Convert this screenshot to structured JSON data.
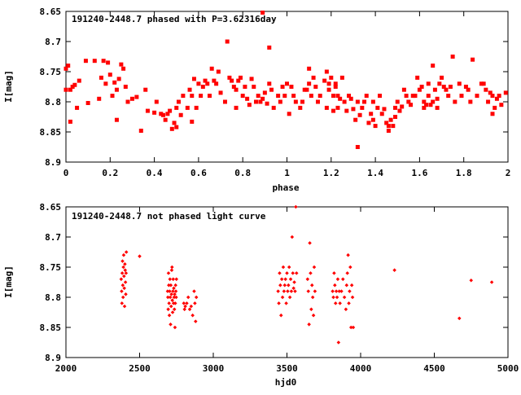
{
  "chart_data": [
    {
      "type": "scatter",
      "title": "191240-2448.7 phased with P=3.62316day",
      "xlabel": "phase",
      "ylabel": "I[mag]",
      "xlim": [
        0,
        2
      ],
      "ylim": [
        8.65,
        8.9
      ],
      "y_inverted": true,
      "x_ticks": [
        "0",
        "0.2",
        "0.4",
        "0.6",
        "0.8",
        "1",
        "1.2",
        "1.4",
        "1.6",
        "1.8",
        "2"
      ],
      "y_ticks": [
        "8.65",
        "8.7",
        "8.75",
        "8.8",
        "8.85",
        "8.9"
      ],
      "marker_color": "#ff0000",
      "grid": false,
      "points": [
        [
          0.0,
          8.745
        ],
        [
          0.0,
          8.78
        ],
        [
          0.01,
          8.74
        ],
        [
          0.02,
          8.78
        ],
        [
          0.02,
          8.833
        ],
        [
          0.03,
          8.775
        ],
        [
          0.04,
          8.772
        ],
        [
          0.05,
          8.81
        ],
        [
          0.06,
          8.765
        ],
        [
          0.09,
          8.732
        ],
        [
          0.1,
          8.802
        ],
        [
          0.13,
          8.732
        ],
        [
          0.15,
          8.795
        ],
        [
          0.16,
          8.76
        ],
        [
          0.17,
          8.732
        ],
        [
          0.18,
          8.77
        ],
        [
          0.19,
          8.735
        ],
        [
          0.2,
          8.755
        ],
        [
          0.21,
          8.79
        ],
        [
          0.22,
          8.768
        ],
        [
          0.23,
          8.78
        ],
        [
          0.23,
          8.83
        ],
        [
          0.24,
          8.762
        ],
        [
          0.25,
          8.738
        ],
        [
          0.26,
          8.745
        ],
        [
          0.27,
          8.775
        ],
        [
          0.28,
          8.8
        ],
        [
          0.3,
          8.795
        ],
        [
          0.32,
          8.792
        ],
        [
          0.34,
          8.848
        ],
        [
          0.36,
          8.78
        ],
        [
          0.37,
          8.815
        ],
        [
          0.4,
          8.818
        ],
        [
          0.41,
          8.8
        ],
        [
          0.43,
          8.82
        ],
        [
          0.44,
          8.822
        ],
        [
          0.45,
          8.83
        ],
        [
          0.46,
          8.82
        ],
        [
          0.47,
          8.815
        ],
        [
          0.48,
          8.845
        ],
        [
          0.49,
          8.835
        ],
        [
          0.5,
          8.81
        ],
        [
          0.5,
          8.842
        ],
        [
          0.51,
          8.8
        ],
        [
          0.52,
          8.822
        ],
        [
          0.53,
          8.79
        ],
        [
          0.55,
          8.81
        ],
        [
          0.56,
          8.78
        ],
        [
          0.57,
          8.79
        ],
        [
          0.57,
          8.833
        ],
        [
          0.58,
          8.762
        ],
        [
          0.59,
          8.81
        ],
        [
          0.6,
          8.77
        ],
        [
          0.61,
          8.79
        ],
        [
          0.62,
          8.775
        ],
        [
          0.63,
          8.765
        ],
        [
          0.64,
          8.77
        ],
        [
          0.65,
          8.79
        ],
        [
          0.66,
          8.745
        ],
        [
          0.67,
          8.765
        ],
        [
          0.68,
          8.77
        ],
        [
          0.69,
          8.75
        ],
        [
          0.7,
          8.785
        ],
        [
          0.72,
          8.8
        ],
        [
          0.73,
          8.7
        ],
        [
          0.74,
          8.76
        ],
        [
          0.75,
          8.765
        ],
        [
          0.76,
          8.775
        ],
        [
          0.77,
          8.78
        ],
        [
          0.77,
          8.81
        ],
        [
          0.78,
          8.765
        ],
        [
          0.79,
          8.76
        ],
        [
          0.8,
          8.79
        ],
        [
          0.81,
          8.775
        ],
        [
          0.82,
          8.795
        ],
        [
          0.83,
          8.805
        ],
        [
          0.84,
          8.762
        ],
        [
          0.85,
          8.775
        ],
        [
          0.86,
          8.8
        ],
        [
          0.87,
          8.79
        ],
        [
          0.88,
          8.8
        ],
        [
          0.89,
          8.652
        ],
        [
          0.89,
          8.795
        ],
        [
          0.9,
          8.785
        ],
        [
          0.91,
          8.803
        ],
        [
          0.92,
          8.71
        ],
        [
          0.92,
          8.77
        ],
        [
          0.93,
          8.78
        ],
        [
          0.94,
          8.81
        ],
        [
          0.96,
          8.79
        ],
        [
          0.97,
          8.8
        ],
        [
          0.98,
          8.775
        ],
        [
          0.99,
          8.79
        ],
        [
          1.0,
          8.77
        ],
        [
          1.01,
          8.82
        ],
        [
          1.02,
          8.775
        ],
        [
          1.03,
          8.79
        ],
        [
          1.04,
          8.8
        ],
        [
          1.06,
          8.81
        ],
        [
          1.07,
          8.8
        ],
        [
          1.08,
          8.78
        ],
        [
          1.09,
          8.78
        ],
        [
          1.1,
          8.745
        ],
        [
          1.1,
          8.77
        ],
        [
          1.11,
          8.79
        ],
        [
          1.12,
          8.76
        ],
        [
          1.13,
          8.775
        ],
        [
          1.14,
          8.8
        ],
        [
          1.15,
          8.79
        ],
        [
          1.17,
          8.765
        ],
        [
          1.18,
          8.81
        ],
        [
          1.18,
          8.75
        ],
        [
          1.19,
          8.78
        ],
        [
          1.19,
          8.77
        ],
        [
          1.2,
          8.76
        ],
        [
          1.21,
          8.79
        ],
        [
          1.21,
          8.815
        ],
        [
          1.22,
          8.77
        ],
        [
          1.22,
          8.775
        ],
        [
          1.23,
          8.79
        ],
        [
          1.23,
          8.81
        ],
        [
          1.24,
          8.795
        ],
        [
          1.25,
          8.76
        ],
        [
          1.26,
          8.8
        ],
        [
          1.27,
          8.815
        ],
        [
          1.28,
          8.79
        ],
        [
          1.29,
          8.795
        ],
        [
          1.3,
          8.812
        ],
        [
          1.31,
          8.83
        ],
        [
          1.32,
          8.8
        ],
        [
          1.32,
          8.875
        ],
        [
          1.33,
          8.822
        ],
        [
          1.34,
          8.81
        ],
        [
          1.35,
          8.8
        ],
        [
          1.36,
          8.79
        ],
        [
          1.37,
          8.835
        ],
        [
          1.38,
          8.82
        ],
        [
          1.39,
          8.83
        ],
        [
          1.39,
          8.8
        ],
        [
          1.4,
          8.84
        ],
        [
          1.41,
          8.81
        ],
        [
          1.42,
          8.79
        ],
        [
          1.43,
          8.82
        ],
        [
          1.44,
          8.812
        ],
        [
          1.45,
          8.835
        ],
        [
          1.46,
          8.84
        ],
        [
          1.46,
          8.848
        ],
        [
          1.47,
          8.83
        ],
        [
          1.48,
          8.84
        ],
        [
          1.49,
          8.81
        ],
        [
          1.49,
          8.825
        ],
        [
          1.5,
          8.8
        ],
        [
          1.51,
          8.815
        ],
        [
          1.52,
          8.808
        ],
        [
          1.53,
          8.78
        ],
        [
          1.54,
          8.79
        ],
        [
          1.55,
          8.8
        ],
        [
          1.56,
          8.805
        ],
        [
          1.57,
          8.79
        ],
        [
          1.58,
          8.79
        ],
        [
          1.59,
          8.76
        ],
        [
          1.6,
          8.78
        ],
        [
          1.61,
          8.775
        ],
        [
          1.62,
          8.8
        ],
        [
          1.62,
          8.81
        ],
        [
          1.63,
          8.805
        ],
        [
          1.64,
          8.79
        ],
        [
          1.64,
          8.77
        ],
        [
          1.65,
          8.805
        ],
        [
          1.66,
          8.74
        ],
        [
          1.66,
          8.8
        ],
        [
          1.67,
          8.78
        ],
        [
          1.68,
          8.795
        ],
        [
          1.68,
          8.81
        ],
        [
          1.69,
          8.77
        ],
        [
          1.7,
          8.76
        ],
        [
          1.71,
          8.775
        ],
        [
          1.72,
          8.78
        ],
        [
          1.73,
          8.79
        ],
        [
          1.74,
          8.775
        ],
        [
          1.75,
          8.725
        ],
        [
          1.76,
          8.8
        ],
        [
          1.78,
          8.77
        ],
        [
          1.79,
          8.79
        ],
        [
          1.81,
          8.775
        ],
        [
          1.82,
          8.78
        ],
        [
          1.83,
          8.8
        ],
        [
          1.84,
          8.73
        ],
        [
          1.86,
          8.79
        ],
        [
          1.88,
          8.77
        ],
        [
          1.89,
          8.77
        ],
        [
          1.9,
          8.78
        ],
        [
          1.91,
          8.8
        ],
        [
          1.92,
          8.785
        ],
        [
          1.93,
          8.79
        ],
        [
          1.93,
          8.82
        ],
        [
          1.94,
          8.81
        ],
        [
          1.95,
          8.795
        ],
        [
          1.96,
          8.79
        ],
        [
          1.97,
          8.805
        ],
        [
          1.99,
          8.785
        ]
      ]
    },
    {
      "type": "scatter",
      "title": "191240-2448.7 not phased light curve",
      "xlabel": "hjd0",
      "ylabel": "I[mag]",
      "xlim": [
        2000,
        5000
      ],
      "ylim": [
        8.65,
        8.9
      ],
      "y_inverted": true,
      "x_ticks": [
        "2000",
        "2500",
        "3000",
        "3500",
        "4000",
        "4500",
        "5000"
      ],
      "y_ticks": [
        "8.65",
        "8.7",
        "8.75",
        "8.8",
        "8.85",
        "8.9"
      ],
      "marker_color": "#ff0000",
      "grid": false,
      "points": [
        [
          2375,
          8.77
        ],
        [
          2378,
          8.79
        ],
        [
          2380,
          8.81
        ],
        [
          2382,
          8.76
        ],
        [
          2384,
          8.74
        ],
        [
          2386,
          8.78
        ],
        [
          2388,
          8.8
        ],
        [
          2390,
          8.75
        ],
        [
          2392,
          8.73
        ],
        [
          2394,
          8.765
        ],
        [
          2396,
          8.785
        ],
        [
          2398,
          8.815
        ],
        [
          2400,
          8.745
        ],
        [
          2402,
          8.755
        ],
        [
          2404,
          8.775
        ],
        [
          2406,
          8.795
        ],
        [
          2408,
          8.76
        ],
        [
          2410,
          8.725
        ],
        [
          2500,
          8.732
        ],
        [
          2690,
          8.79
        ],
        [
          2692,
          8.8
        ],
        [
          2694,
          8.82
        ],
        [
          2696,
          8.76
        ],
        [
          2698,
          8.78
        ],
        [
          2700,
          8.81
        ],
        [
          2702,
          8.83
        ],
        [
          2704,
          8.79
        ],
        [
          2706,
          8.77
        ],
        [
          2708,
          8.8
        ],
        [
          2710,
          8.845
        ],
        [
          2712,
          8.78
        ],
        [
          2714,
          8.815
        ],
        [
          2716,
          8.795
        ],
        [
          2718,
          8.755
        ],
        [
          2720,
          8.75
        ],
        [
          2722,
          8.805
        ],
        [
          2724,
          8.825
        ],
        [
          2726,
          8.79
        ],
        [
          2728,
          8.77
        ],
        [
          2730,
          8.81
        ],
        [
          2732,
          8.785
        ],
        [
          2734,
          8.8
        ],
        [
          2736,
          8.82
        ],
        [
          2738,
          8.795
        ],
        [
          2740,
          8.85
        ],
        [
          2742,
          8.81
        ],
        [
          2744,
          8.78
        ],
        [
          2746,
          8.79
        ],
        [
          2748,
          8.8
        ],
        [
          2750,
          8.77
        ],
        [
          2800,
          8.81
        ],
        [
          2805,
          8.82
        ],
        [
          2810,
          8.815
        ],
        [
          2820,
          8.81
        ],
        [
          2830,
          8.8
        ],
        [
          2840,
          8.82
        ],
        [
          2850,
          8.815
        ],
        [
          2860,
          8.83
        ],
        [
          2870,
          8.79
        ],
        [
          2875,
          8.81
        ],
        [
          2880,
          8.84
        ],
        [
          2885,
          8.8
        ],
        [
          3440,
          8.79
        ],
        [
          3445,
          8.81
        ],
        [
          3450,
          8.76
        ],
        [
          3455,
          8.78
        ],
        [
          3460,
          8.83
        ],
        [
          3465,
          8.77
        ],
        [
          3470,
          8.8
        ],
        [
          3475,
          8.75
        ],
        [
          3480,
          8.79
        ],
        [
          3485,
          8.78
        ],
        [
          3490,
          8.77
        ],
        [
          3495,
          8.81
        ],
        [
          3500,
          8.76
        ],
        [
          3505,
          8.79
        ],
        [
          3510,
          8.78
        ],
        [
          3515,
          8.75
        ],
        [
          3520,
          8.8
        ],
        [
          3525,
          8.77
        ],
        [
          3530,
          8.79
        ],
        [
          3535,
          8.7
        ],
        [
          3540,
          8.76
        ],
        [
          3545,
          8.785
        ],
        [
          3550,
          8.775
        ],
        [
          3555,
          8.79
        ],
        [
          3560,
          8.65
        ],
        [
          3565,
          8.76
        ],
        [
          3640,
          8.77
        ],
        [
          3645,
          8.79
        ],
        [
          3650,
          8.845
        ],
        [
          3655,
          8.71
        ],
        [
          3660,
          8.76
        ],
        [
          3665,
          8.82
        ],
        [
          3670,
          8.78
        ],
        [
          3675,
          8.8
        ],
        [
          3680,
          8.83
        ],
        [
          3685,
          8.75
        ],
        [
          3690,
          8.79
        ],
        [
          3810,
          8.79
        ],
        [
          3815,
          8.8
        ],
        [
          3820,
          8.76
        ],
        [
          3825,
          8.78
        ],
        [
          3830,
          8.81
        ],
        [
          3835,
          8.79
        ],
        [
          3840,
          8.8
        ],
        [
          3845,
          8.77
        ],
        [
          3850,
          8.875
        ],
        [
          3855,
          8.79
        ],
        [
          3860,
          8.81
        ],
        [
          3870,
          8.79
        ],
        [
          3880,
          8.77
        ],
        [
          3890,
          8.8
        ],
        [
          3900,
          8.82
        ],
        [
          3905,
          8.78
        ],
        [
          3910,
          8.76
        ],
        [
          3915,
          8.73
        ],
        [
          3920,
          8.81
        ],
        [
          3925,
          8.79
        ],
        [
          3930,
          8.75
        ],
        [
          3935,
          8.85
        ],
        [
          3940,
          8.78
        ],
        [
          3945,
          8.8
        ],
        [
          3950,
          8.85
        ],
        [
          4230,
          8.755
        ],
        [
          4670,
          8.835
        ],
        [
          4750,
          8.772
        ],
        [
          4890,
          8.775
        ]
      ]
    }
  ]
}
